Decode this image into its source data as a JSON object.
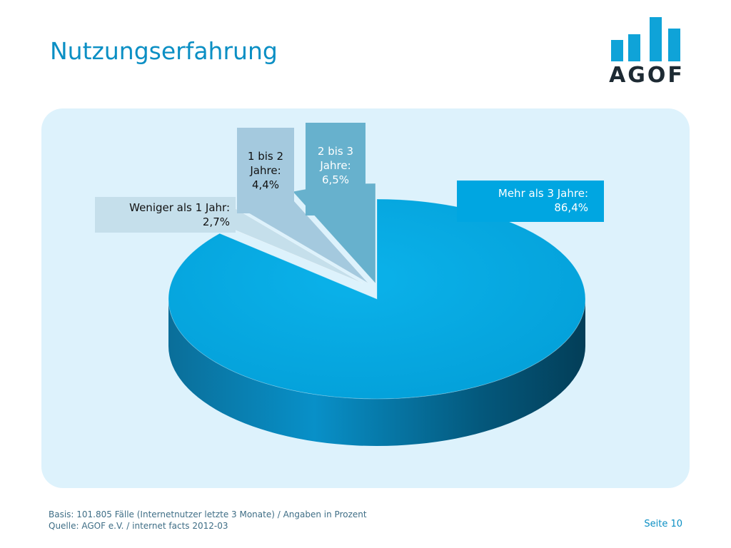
{
  "title": "Nutzungserfahrung",
  "logo": {
    "text": "AGOF",
    "bar_color": "#0fa3d8"
  },
  "panel_color": "#ddf2fc",
  "chart_data": {
    "type": "pie",
    "title": "",
    "categories": [
      "Weniger als 1 Jahr",
      "1 bis 2 Jahre",
      "2 bis 3 Jahre",
      "Mehr als 3 Jahre"
    ],
    "values": [
      2.7,
      4.4,
      6.5,
      86.4
    ],
    "unit": "%",
    "colors": [
      "#c5dfeb",
      "#a4c9de",
      "#67b1cd",
      "#00a6e1"
    ],
    "labels": [
      {
        "lines": [
          "Weniger als 1 Jahr:",
          "2,7%"
        ]
      },
      {
        "lines": [
          "1 bis 2",
          "Jahre:",
          "4,4%"
        ]
      },
      {
        "lines": [
          "2 bis 3",
          "Jahre:",
          "6,5%"
        ]
      },
      {
        "lines": [
          "Mehr als 3 Jahre:",
          "86,4%"
        ]
      }
    ],
    "style": "3d-exploded"
  },
  "footer": {
    "basis": "Basis: 101.805 Fälle (Internetnutzer letzte 3 Monate) / Angaben in Prozent",
    "source": "Quelle: AGOF e.V. / internet facts 2012-03",
    "page": "Seite 10"
  }
}
